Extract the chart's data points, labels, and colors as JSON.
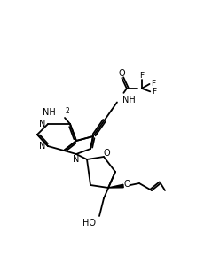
{
  "lc": "#000000",
  "bg": "#ffffff",
  "lw": 1.3,
  "figsize": [
    2.35,
    2.93
  ],
  "dpi": 100
}
